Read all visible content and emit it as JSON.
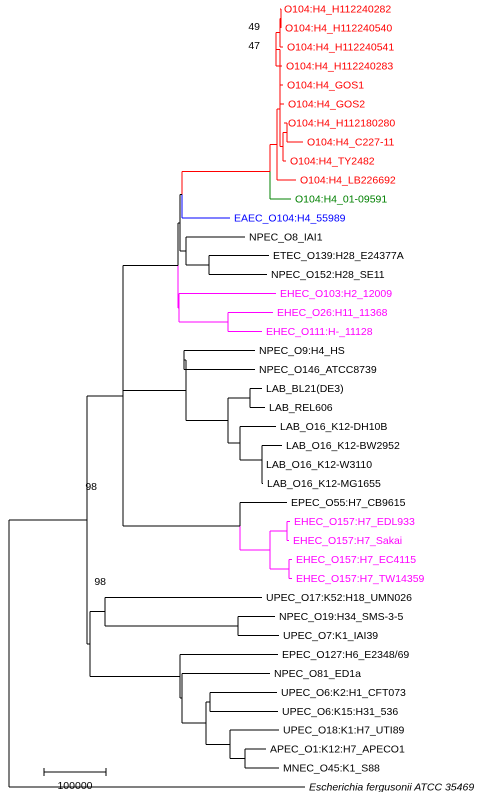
{
  "colors": {
    "black": "#000000",
    "red": "#ff0000",
    "green": "#008000",
    "blue": "#0000ff",
    "magenta": "#ff00ff"
  },
  "bootstrap_values": [
    "49",
    "47",
    "98",
    "98"
  ],
  "scale_bar": {
    "label": "100000",
    "length": 100000
  },
  "taxa": [
    {
      "label": "O104:H4_H112240282",
      "color": "red"
    },
    {
      "label": "O104:H4_H112240540",
      "color": "red"
    },
    {
      "label": "O104:H4_H112240541",
      "color": "red"
    },
    {
      "label": "O104:H4_H112240283",
      "color": "red"
    },
    {
      "label": "O104:H4_GOS1",
      "color": "red"
    },
    {
      "label": "O104:H4_GOS2",
      "color": "red"
    },
    {
      "label": "O104:H4_H112180280",
      "color": "red"
    },
    {
      "label": "O104:H4_C227-11",
      "color": "red"
    },
    {
      "label": "O104:H4_TY2482",
      "color": "red"
    },
    {
      "label": "O104:H4_LB226692",
      "color": "red"
    },
    {
      "label": "O104:H4_01-09591",
      "color": "green"
    },
    {
      "label": "EAEC_O104:H4_55989",
      "color": "blue"
    },
    {
      "label": "NPEC_O8_IAI1",
      "color": "black"
    },
    {
      "label": "ETEC_O139:H28_E24377A",
      "color": "black"
    },
    {
      "label": "NPEC_O152:H28_SE11",
      "color": "black"
    },
    {
      "label": "EHEC_O103:H2_12009",
      "color": "magenta"
    },
    {
      "label": "EHEC_O26:H11_11368",
      "color": "magenta"
    },
    {
      "label": "EHEC_O111:H-_11128",
      "color": "magenta"
    },
    {
      "label": "NPEC_O9:H4_HS",
      "color": "black"
    },
    {
      "label": "NPEC_O146_ATCC8739",
      "color": "black"
    },
    {
      "label": "LAB_BL21(DE3)",
      "color": "black"
    },
    {
      "label": "LAB_REL606",
      "color": "black"
    },
    {
      "label": "LAB_O16_K12-DH10B",
      "color": "black"
    },
    {
      "label": "LAB_O16_K12-BW2952",
      "color": "black"
    },
    {
      "label": "LAB_O16_K12-W3110",
      "color": "black"
    },
    {
      "label": "LAB_O16_K12-MG1655",
      "color": "black"
    },
    {
      "label": "EPEC_O55:H7_CB9615",
      "color": "black"
    },
    {
      "label": "EHEC_O157:H7_EDL933",
      "color": "magenta"
    },
    {
      "label": "EHEC_O157:H7_Sakai",
      "color": "magenta"
    },
    {
      "label": "EHEC_O157:H7_EC4115",
      "color": "magenta"
    },
    {
      "label": "EHEC_O157:H7_TW14359",
      "color": "magenta"
    },
    {
      "label": "UPEC_O17:K52:H18_UMN026",
      "color": "black"
    },
    {
      "label": "NPEC_O19:H34_SMS-3-5",
      "color": "black"
    },
    {
      "label": "UPEC_O7:K1_IAI39",
      "color": "black"
    },
    {
      "label": "EPEC_O127:H6_E2348/69",
      "color": "black"
    },
    {
      "label": "NPEC_O81_ED1a",
      "color": "black"
    },
    {
      "label": "UPEC_O6:K2:H1_CFT073",
      "color": "black"
    },
    {
      "label": "UPEC_O6:K15:H31_536",
      "color": "black"
    },
    {
      "label": "UPEC_O18:K1:H7_UTI89",
      "color": "black"
    },
    {
      "label": "APEC_O1:K12:H7_APECO1",
      "color": "black"
    },
    {
      "label": "MNEC_O45:K1_S88",
      "color": "black"
    },
    {
      "label": "Escherichia fergusonii ATCC 35469",
      "color": "black",
      "italic": true
    }
  ]
}
